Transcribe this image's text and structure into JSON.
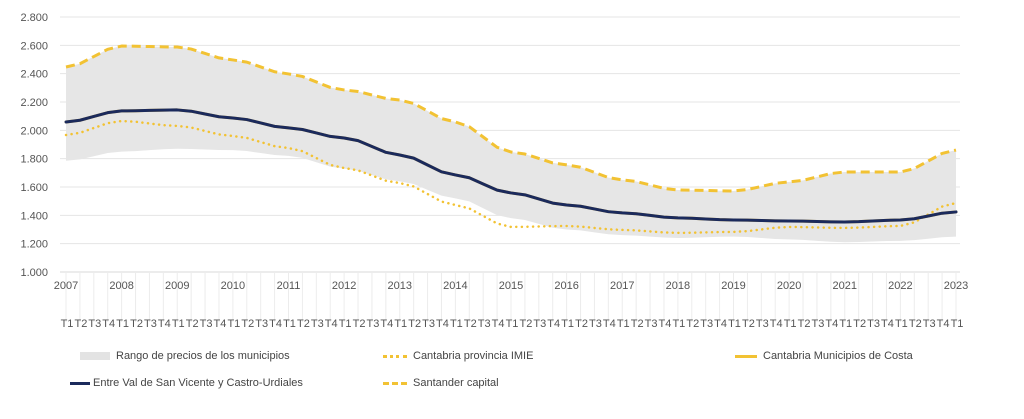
{
  "chart_data": {
    "type": "line",
    "title": "",
    "xlabel": "",
    "ylabel": "",
    "ylim": [
      1000,
      2800
    ],
    "yticks": [
      "1.000",
      "1.200",
      "1.400",
      "1.600",
      "1.800",
      "2.000",
      "2.200",
      "2.400",
      "2.600",
      "2.800"
    ],
    "ytick_values": [
      1000,
      1200,
      1400,
      1600,
      1800,
      2000,
      2200,
      2400,
      2600,
      2800
    ],
    "grid": true,
    "legend_position": "bottom",
    "years": [
      "2007",
      "2008",
      "2009",
      "2010",
      "2011",
      "2012",
      "2013",
      "2014",
      "2015",
      "2016",
      "2017",
      "2018",
      "2019",
      "2020",
      "2021",
      "2022",
      "2023"
    ],
    "quarter_labels": [
      "T1",
      "T2",
      "T3",
      "T4"
    ],
    "x_note": "Quarterly from 2007 T1 to 2023 T1; values given at each year's T1",
    "range": {
      "name": "Rango de precios de los municipios",
      "color": "#e6e6e6",
      "lower": [
        1785,
        1850,
        1870,
        1860,
        1820,
        1730,
        1640,
        1520,
        1380,
        1300,
        1260,
        1240,
        1250,
        1230,
        1210,
        1220,
        1250
      ],
      "upper": [
        2447,
        2595,
        2588,
        2497,
        2398,
        2285,
        2214,
        2059,
        1847,
        1756,
        1650,
        1579,
        1572,
        1636,
        1706,
        1706,
        1861
      ]
    },
    "series": [
      {
        "name": "Entre Val de San Vicente y Castro-Urdiales",
        "style": "solid",
        "color": "#1b2a5c",
        "values": [
          2059,
          2137,
          2144,
          2087,
          2017,
          1946,
          1826,
          1685,
          1558,
          1473,
          1417,
          1382,
          1367,
          1360,
          1353,
          1367,
          1424
        ]
      },
      {
        "name": "Santander capital",
        "style": "dashed",
        "color": "#f2c233",
        "values": [
          2447,
          2595,
          2588,
          2497,
          2398,
          2285,
          2214,
          2059,
          1847,
          1756,
          1650,
          1579,
          1572,
          1636,
          1706,
          1706,
          1861
        ]
      },
      {
        "name": "Cantabria provincia IMIE",
        "style": "dotted",
        "color": "#f2c233",
        "values": [
          1967,
          2066,
          2031,
          1960,
          1875,
          1734,
          1628,
          1473,
          1318,
          1325,
          1297,
          1276,
          1283,
          1318,
          1311,
          1325,
          1487
        ]
      },
      {
        "name": "Cantabria Municipios de Costa",
        "style": "solid-thick",
        "color": "#f2c233",
        "values": [
          2059,
          2137,
          2144,
          2087,
          2017,
          1946,
          1826,
          1685,
          1558,
          1473,
          1417,
          1382,
          1367,
          1360,
          1353,
          1367,
          1424
        ]
      }
    ]
  },
  "legend": [
    {
      "label": "Rango de precios de los municipios",
      "kind": "area"
    },
    {
      "label": "Cantabria provincia IMIE",
      "kind": "dotted"
    },
    {
      "label": "Cantabria Municipios de Costa",
      "kind": "solid-yellow"
    },
    {
      "label": "Entre Val de San Vicente y Castro-Urdiales",
      "kind": "solid-navy"
    },
    {
      "label": "Santander capital",
      "kind": "dashed"
    }
  ]
}
